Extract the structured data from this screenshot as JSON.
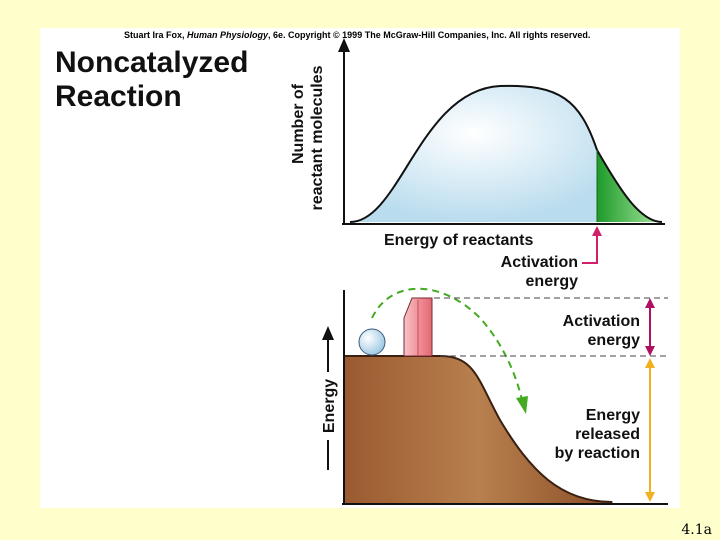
{
  "header": {
    "copyright_author": "Stuart Ira Fox, ",
    "copyright_book": "Human Physiology",
    "copyright_rest": ", 6e. Copyright © 1999 The McGraw-Hill Companies, Inc.  All rights reserved."
  },
  "title": {
    "line1": "Noncatalyzed",
    "line2": "Reaction"
  },
  "top_graph": {
    "ylabel_line1": "Number of",
    "ylabel_line2": "reactant molecules",
    "xlabel": "Energy of reactants",
    "threshold_label_line1": "Activation",
    "threshold_label_line2": "energy"
  },
  "bottom_graph": {
    "ylabel": "Energy",
    "activation_label_line1": "Activation",
    "activation_label_line2": "energy",
    "released_label_line1": "Energy",
    "released_label_line2": "released",
    "released_label_line3": "by reaction"
  },
  "figure_label": "4.1a",
  "colors": {
    "background": "#ffffcc",
    "curve_fill": "#cfe8f3",
    "activated_fill": "#3cb33c",
    "hill_fill": "#a86a3c",
    "barrier_fill": "#f09aa0",
    "arrow_green": "#44aa22",
    "activation_arrow": "#b01060",
    "released_arrow": "#f0b020",
    "pointer_arrow": "#d0206a"
  }
}
